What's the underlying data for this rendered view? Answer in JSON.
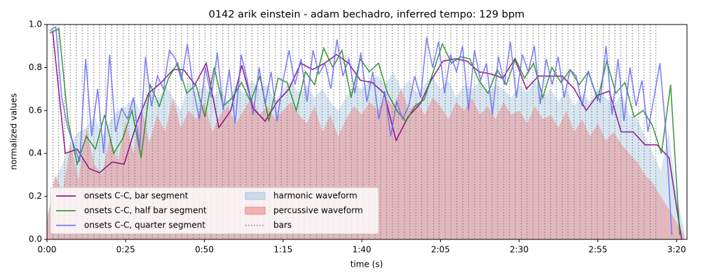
{
  "chart_data": {
    "type": "line",
    "title": "0142 arik einstein - adam bechadro, inferred tempo: 129 bpm",
    "xlabel": "time (s)",
    "ylabel": "normalized values",
    "xlim": [
      0,
      203.3
    ],
    "ylim": [
      0,
      1
    ],
    "xticks": [
      {
        "value": 0,
        "label": "0:00"
      },
      {
        "value": 25,
        "label": "0:25"
      },
      {
        "value": 50,
        "label": "0:50"
      },
      {
        "value": 75,
        "label": "1:15"
      },
      {
        "value": 100,
        "label": "1:40"
      },
      {
        "value": 125,
        "label": "2:05"
      },
      {
        "value": 150,
        "label": "2:30"
      },
      {
        "value": 175,
        "label": "2:55"
      },
      {
        "value": 200,
        "label": "3:20"
      }
    ],
    "yticks": [
      {
        "value": 0,
        "label": "0.0"
      },
      0.2,
      0.4,
      0.6,
      0.8,
      {
        "value": 1,
        "label": "1.0"
      }
    ],
    "legend": "lower left",
    "series": [
      {
        "name": "onsets C-C, bar segment",
        "kind": "line",
        "color": "#800080",
        "x": [
          1.8,
          5.8,
          9.6,
          13.4,
          16.7,
          20.7,
          24.5,
          28.5,
          32.3,
          36.3,
          40.1,
          43.4,
          47.0,
          50.6,
          54.6,
          58.4,
          61.9,
          65.5,
          69.3,
          73.1,
          76.9,
          80.6,
          84.4,
          88.2,
          92.0,
          95.8,
          99.6,
          103.3,
          107.1,
          110.9,
          114.7,
          118.5,
          122.0,
          125.8,
          129.8,
          133.4,
          137.2,
          141.0,
          144.8,
          148.6,
          152.3,
          156.1,
          159.9,
          163.7,
          167.5,
          171.3,
          174.8,
          178.6,
          182.4,
          186.2,
          190.0,
          193.8,
          197.6,
          201.6
        ],
        "values": [
          0.97,
          0.4,
          0.42,
          0.33,
          0.31,
          0.36,
          0.35,
          0.54,
          0.68,
          0.73,
          0.79,
          0.79,
          0.72,
          0.82,
          0.52,
          0.6,
          0.81,
          0.61,
          0.55,
          0.64,
          0.7,
          0.82,
          0.79,
          0.82,
          0.86,
          0.82,
          0.74,
          0.73,
          0.68,
          0.46,
          0.57,
          0.63,
          0.74,
          0.83,
          0.84,
          0.83,
          0.78,
          0.77,
          0.75,
          0.84,
          0.7,
          0.76,
          0.76,
          0.76,
          0.7,
          0.6,
          0.67,
          0.69,
          0.5,
          0.5,
          0.44,
          0.44,
          0.38,
          0.0
        ]
      },
      {
        "name": "onsets C-C, half bar segment",
        "kind": "line",
        "color": "#228b22",
        "x": [
          0.9,
          3.8,
          6.7,
          9.6,
          12.5,
          15.4,
          18.3,
          21.2,
          24.1,
          27.0,
          29.9,
          32.8,
          35.7,
          38.6,
          41.5,
          44.4,
          47.3,
          50.2,
          53.1,
          56.0,
          58.9,
          61.8,
          64.7,
          67.6,
          70.5,
          73.4,
          76.3,
          79.2,
          82.1,
          85.0,
          87.9,
          90.8,
          93.7,
          96.6,
          99.5,
          102.4,
          105.3,
          108.2,
          111.1,
          114.0,
          116.9,
          119.8,
          122.7,
          125.6,
          128.5,
          131.4,
          134.3,
          137.2,
          140.1,
          143.0,
          145.9,
          148.8,
          151.7,
          154.6,
          157.5,
          160.4,
          163.3,
          166.2,
          169.1,
          172.0,
          174.9,
          177.8,
          180.7,
          183.6,
          186.5,
          189.4,
          192.3,
          195.2,
          198.1,
          201.0
        ],
        "values": [
          0.96,
          0.98,
          0.55,
          0.35,
          0.48,
          0.42,
          0.58,
          0.4,
          0.47,
          0.6,
          0.38,
          0.72,
          0.62,
          0.75,
          0.82,
          0.68,
          0.72,
          0.57,
          0.8,
          0.62,
          0.66,
          0.73,
          0.64,
          0.76,
          0.55,
          0.75,
          0.73,
          0.6,
          0.78,
          0.72,
          0.89,
          0.8,
          0.88,
          0.66,
          0.84,
          0.78,
          0.82,
          0.68,
          0.6,
          0.55,
          0.62,
          0.65,
          0.78,
          0.91,
          0.82,
          0.85,
          0.84,
          0.74,
          0.68,
          0.79,
          0.72,
          0.84,
          0.75,
          0.82,
          0.66,
          0.8,
          0.73,
          0.79,
          0.72,
          0.78,
          0.65,
          0.83,
          0.68,
          0.73,
          0.57,
          0.6,
          0.53,
          0.4,
          0.72,
          0.02
        ]
      },
      {
        "name": "onsets C-C, quarter segment",
        "kind": "line",
        "color": "#6b6bf5",
        "x": [
          0.9,
          2.8,
          4.7,
          6.6,
          8.5,
          10.4,
          12.3,
          14.2,
          16.1,
          18.0,
          19.9,
          21.8,
          23.7,
          25.6,
          27.5,
          29.4,
          31.3,
          33.2,
          35.1,
          37.0,
          38.9,
          40.8,
          42.7,
          44.6,
          46.5,
          48.4,
          50.3,
          52.2,
          54.1,
          56.0,
          57.9,
          59.8,
          61.7,
          63.6,
          65.5,
          67.4,
          69.3,
          71.2,
          73.1,
          75.0,
          76.9,
          78.8,
          80.7,
          82.6,
          84.5,
          86.4,
          88.3,
          90.2,
          92.1,
          94.0,
          95.9,
          97.8,
          99.7,
          101.6,
          103.5,
          105.4,
          107.3,
          109.2,
          111.1,
          113.0,
          114.9,
          116.8,
          118.7,
          120.6,
          122.5,
          124.4,
          126.3,
          128.2,
          130.1,
          132.0,
          133.9,
          135.8,
          137.7,
          139.6,
          141.5,
          143.4,
          145.3,
          147.2,
          149.1,
          151.0,
          152.9,
          154.8,
          156.7,
          158.6,
          160.5,
          162.4,
          164.3,
          166.2,
          168.1,
          170.0,
          171.9,
          173.8,
          175.7,
          177.6,
          179.5,
          181.4,
          183.3,
          185.2,
          187.1,
          189.0,
          190.9,
          192.8,
          194.7,
          196.6,
          198.5
        ],
        "values": [
          0.97,
          0.99,
          0.66,
          0.52,
          0.44,
          0.36,
          0.84,
          0.48,
          0.7,
          0.4,
          0.86,
          0.5,
          0.61,
          0.56,
          0.66,
          0.42,
          0.85,
          0.62,
          0.76,
          0.7,
          0.88,
          0.84,
          0.74,
          0.91,
          0.7,
          0.56,
          0.8,
          0.66,
          0.87,
          0.6,
          0.79,
          0.54,
          0.86,
          0.74,
          0.58,
          0.8,
          0.63,
          0.78,
          0.55,
          0.74,
          0.88,
          0.72,
          0.84,
          0.64,
          0.88,
          0.77,
          0.82,
          0.7,
          0.93,
          0.76,
          0.84,
          0.68,
          0.87,
          0.64,
          0.78,
          0.56,
          0.69,
          0.48,
          0.64,
          0.56,
          0.62,
          0.76,
          0.66,
          0.94,
          0.8,
          0.92,
          0.68,
          0.86,
          0.78,
          0.9,
          0.6,
          0.88,
          0.74,
          0.82,
          0.58,
          0.85,
          0.72,
          0.92,
          0.66,
          0.86,
          0.78,
          0.9,
          0.63,
          0.84,
          0.72,
          0.85,
          0.66,
          0.79,
          0.76,
          0.62,
          0.78,
          0.7,
          0.64,
          0.9,
          0.58,
          0.84,
          0.55,
          0.8,
          0.62,
          0.74,
          0.5,
          0.66,
          0.82,
          0.5,
          0.02
        ]
      },
      {
        "name": "harmonic waveform",
        "kind": "area",
        "color": "#a8c8e0",
        "x": [
          0,
          2.5,
          5,
          7.5,
          10,
          12.5,
          15,
          17.5,
          20,
          22.5,
          25,
          27.5,
          30,
          32.5,
          35,
          37.5,
          40,
          42.5,
          45,
          47.5,
          50,
          52.5,
          55,
          57.5,
          60,
          62.5,
          65,
          67.5,
          70,
          72.5,
          75,
          77.5,
          80,
          82.5,
          85,
          87.5,
          90,
          92.5,
          95,
          97.5,
          100,
          102.5,
          105,
          107.5,
          110,
          112.5,
          115,
          117.5,
          120,
          122.5,
          125,
          127.5,
          130,
          132.5,
          135,
          137.5,
          140,
          142.5,
          145,
          147.5,
          150,
          152.5,
          155,
          157.5,
          160,
          162.5,
          165,
          167.5,
          170,
          172.5,
          175,
          177.5,
          180,
          182.5,
          185,
          187.5,
          190,
          192.5,
          195,
          197.5,
          200,
          202.5
        ],
        "values": [
          0.1,
          0.28,
          0.35,
          0.45,
          0.5,
          0.52,
          0.58,
          0.48,
          0.55,
          0.6,
          0.62,
          0.66,
          0.58,
          0.7,
          0.64,
          0.72,
          0.66,
          0.6,
          0.74,
          0.68,
          0.72,
          0.66,
          0.7,
          0.64,
          0.72,
          0.68,
          0.74,
          0.7,
          0.72,
          0.64,
          0.7,
          0.74,
          0.68,
          0.72,
          0.66,
          0.7,
          0.64,
          0.6,
          0.66,
          0.72,
          0.7,
          0.74,
          0.76,
          0.72,
          0.78,
          0.7,
          0.74,
          0.68,
          0.72,
          0.76,
          0.7,
          0.74,
          0.66,
          0.72,
          0.7,
          0.74,
          0.68,
          0.72,
          0.7,
          0.66,
          0.72,
          0.68,
          0.74,
          0.66,
          0.7,
          0.64,
          0.7,
          0.62,
          0.68,
          0.64,
          0.7,
          0.66,
          0.62,
          0.68,
          0.58,
          0.56,
          0.48,
          0.4,
          0.32,
          0.5,
          0.2,
          0.04
        ]
      },
      {
        "name": "percussive waveform",
        "kind": "area",
        "color": "#f08080",
        "x": [
          0,
          2.5,
          5,
          7.5,
          10,
          12.5,
          15,
          17.5,
          20,
          22.5,
          25,
          27.5,
          30,
          32.5,
          35,
          37.5,
          40,
          42.5,
          45,
          47.5,
          50,
          52.5,
          55,
          57.5,
          60,
          62.5,
          65,
          67.5,
          70,
          72.5,
          75,
          77.5,
          80,
          82.5,
          85,
          87.5,
          90,
          92.5,
          95,
          97.5,
          100,
          102.5,
          105,
          107.5,
          110,
          112.5,
          115,
          117.5,
          120,
          122.5,
          125,
          127.5,
          130,
          132.5,
          135,
          137.5,
          140,
          142.5,
          145,
          147.5,
          150,
          152.5,
          155,
          157.5,
          160,
          162.5,
          165,
          167.5,
          170,
          172.5,
          175,
          177.5,
          180,
          182.5,
          185,
          187.5,
          190,
          192.5,
          195,
          197.5,
          200,
          202.5
        ],
        "values": [
          0.08,
          0.3,
          0.22,
          0.45,
          0.28,
          0.52,
          0.35,
          0.3,
          0.48,
          0.36,
          0.55,
          0.4,
          0.62,
          0.45,
          0.58,
          0.5,
          0.66,
          0.52,
          0.6,
          0.56,
          0.64,
          0.5,
          0.58,
          0.62,
          0.54,
          0.6,
          0.66,
          0.58,
          0.62,
          0.56,
          0.6,
          0.64,
          0.58,
          0.54,
          0.62,
          0.5,
          0.58,
          0.48,
          0.56,
          0.62,
          0.58,
          0.64,
          0.6,
          0.66,
          0.62,
          0.7,
          0.6,
          0.64,
          0.58,
          0.66,
          0.62,
          0.56,
          0.64,
          0.6,
          0.66,
          0.58,
          0.62,
          0.56,
          0.64,
          0.58,
          0.6,
          0.54,
          0.62,
          0.56,
          0.58,
          0.52,
          0.6,
          0.5,
          0.56,
          0.48,
          0.54,
          0.46,
          0.5,
          0.44,
          0.4,
          0.36,
          0.3,
          0.26,
          0.2,
          0.14,
          0.08,
          0.02
        ]
      },
      {
        "name": "bars",
        "kind": "vlines",
        "color": "#808080",
        "x": [
          0,
          1.9,
          3.7,
          5.6,
          7.4,
          9.3,
          11.2,
          13.0,
          14.9,
          16.7,
          18.6,
          20.5,
          22.3,
          24.2,
          26.0,
          27.9,
          29.8,
          31.6,
          33.5,
          35.3,
          37.2,
          39.1,
          40.9,
          42.8,
          44.6,
          46.5,
          48.4,
          50.2,
          52.1,
          53.9,
          55.8,
          57.7,
          59.5,
          61.4,
          63.2,
          65.1,
          67.0,
          68.8,
          70.7,
          72.5,
          74.4,
          76.3,
          78.1,
          80.0,
          81.8,
          83.7,
          85.6,
          87.4,
          89.3,
          91.1,
          93.0,
          94.9,
          96.7,
          98.6,
          100.4,
          102.3,
          104.2,
          106.0,
          107.9,
          109.7,
          111.6,
          113.5,
          115.3,
          117.2,
          119.0,
          120.9,
          122.8,
          124.6,
          126.5,
          128.3,
          130.2,
          132.1,
          133.9,
          135.8,
          137.6,
          139.5,
          141.4,
          143.2,
          145.1,
          146.9,
          148.8,
          150.7,
          152.5,
          154.4,
          156.2,
          158.1,
          160.0,
          161.8,
          163.7,
          165.5,
          167.4,
          169.3,
          171.1,
          173.0,
          174.8,
          176.7,
          178.6,
          180.4,
          182.3,
          184.1,
          186.0,
          187.9,
          189.7,
          191.6,
          193.4
        ]
      }
    ]
  }
}
